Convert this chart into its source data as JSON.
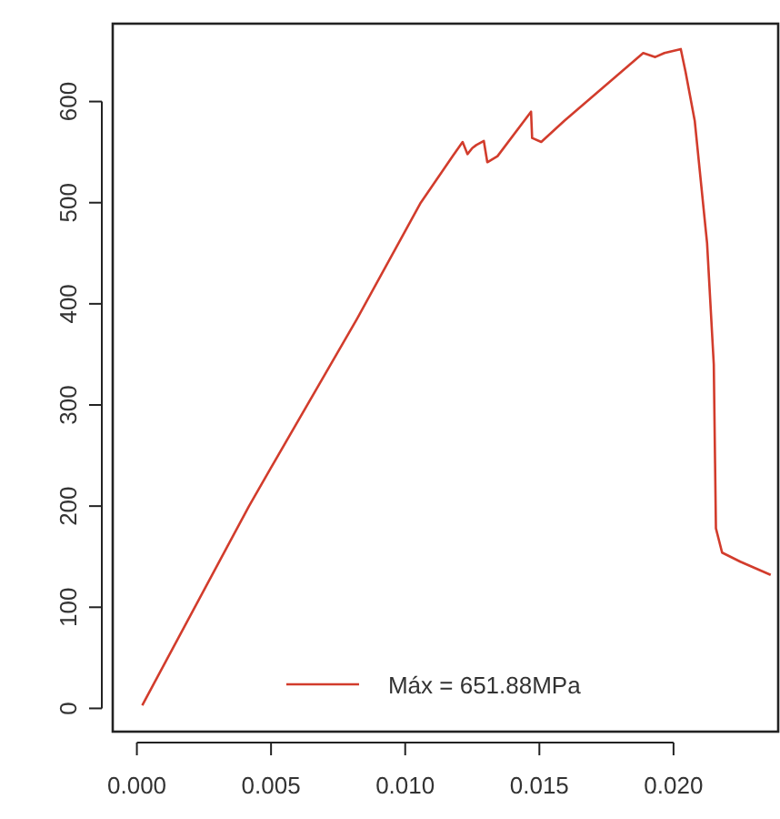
{
  "chart_data": {
    "type": "line",
    "xlim": [
      -0.0009,
      0.0239
    ],
    "ylim": [
      -23,
      677
    ],
    "xticks": [
      {
        "value": 0,
        "label": "0.000"
      },
      0.005,
      {
        "value": 0.01,
        "label": "0.010"
      },
      0.015,
      {
        "value": 0.02,
        "label": "0.020"
      }
    ],
    "yticks": [
      0,
      100,
      200,
      300,
      400,
      500,
      600
    ],
    "grid": false,
    "legend": "bottom",
    "line_style": "solid",
    "series": [
      {
        "name": "Máx = 651.88MPa",
        "color": "#d23c2c",
        "x": [
          0.0002,
          0.00418,
          0.005,
          0.0082,
          0.01058,
          0.01177,
          0.01214,
          0.01232,
          0.0125,
          0.01265,
          0.01293,
          0.01306,
          0.01344,
          0.01469,
          0.01473,
          0.01507,
          0.01593,
          0.01887,
          0.01932,
          0.01966,
          0.02027,
          0.02045,
          0.02079,
          0.02125,
          0.0215,
          0.02158,
          0.02181,
          0.02249,
          0.02362
        ],
        "values": [
          3,
          200,
          238,
          385,
          500,
          546,
          560,
          548,
          554,
          557,
          561,
          540,
          546,
          590,
          564,
          560,
          581,
          648,
          644,
          648,
          651.88,
          629,
          581,
          460,
          340,
          178,
          154,
          145,
          132
        ]
      }
    ]
  }
}
